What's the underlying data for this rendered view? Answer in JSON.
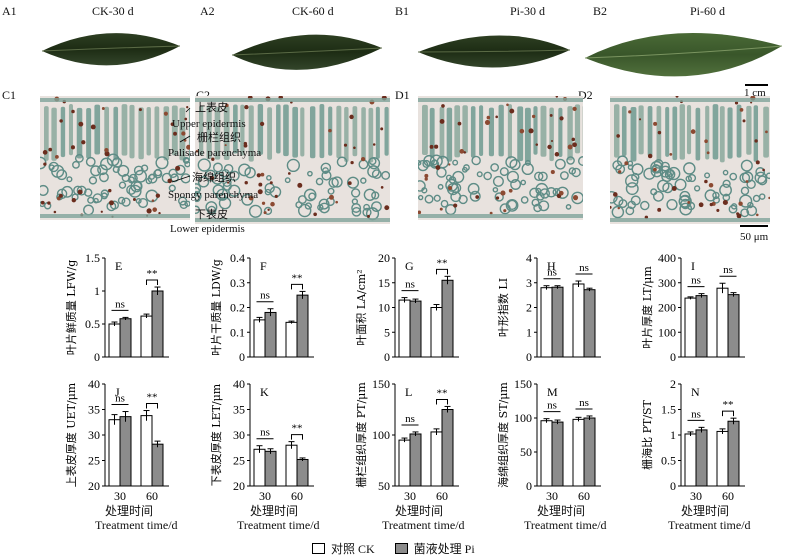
{
  "leaf_panels": [
    {
      "letter": "A1",
      "label": "CK-30 d"
    },
    {
      "letter": "A2",
      "label": "CK-60 d"
    },
    {
      "letter": "B1",
      "label": "Pi-30 d"
    },
    {
      "letter": "B2",
      "label": "Pi-60 d"
    }
  ],
  "leaf_scale": "1 cm",
  "micro_panels": [
    "C1",
    "C2",
    "D1",
    "D2"
  ],
  "micro_scale": "50 μm",
  "annotations": {
    "upper_cn": "上表皮",
    "upper_en": "Upper epidermis",
    "palisade_cn": "栅栏组织",
    "palisade_en": "Palisade parenchyma",
    "spongy_cn": "海绵组织",
    "spongy_en": "Spongy parenchyma",
    "lower_cn": "下表皮",
    "lower_en": "Lower epidermis"
  },
  "xlabel_cn": "处理时间",
  "xlabel_en": "Treatment time/d",
  "legend": {
    "ck": "对照 CK",
    "pi": "菌液处理 Pi"
  },
  "colors": {
    "ck": "#ffffff",
    "pi": "#8c8c8c"
  },
  "chart_data": [
    {
      "type": "bar",
      "panel": "E",
      "ylabel": "叶片鲜质量 LFW/g",
      "categories": [
        "30",
        "60"
      ],
      "ylim": [
        0,
        1.5
      ],
      "yticks": [
        0,
        0.5,
        1.0,
        1.5
      ],
      "series": [
        {
          "name": "对照 CK",
          "values": [
            0.5,
            0.62
          ],
          "errors": [
            0.03,
            0.03
          ]
        },
        {
          "name": "菌液处理 Pi",
          "values": [
            0.58,
            1.0
          ],
          "errors": [
            0.02,
            0.06
          ]
        }
      ],
      "significance": [
        "ns",
        "**"
      ]
    },
    {
      "type": "bar",
      "panel": "F",
      "ylabel": "叶片干质量 LDW/g",
      "categories": [
        "30",
        "60"
      ],
      "ylim": [
        0,
        0.4
      ],
      "yticks": [
        0,
        0.1,
        0.2,
        0.3,
        0.4
      ],
      "series": [
        {
          "name": "对照 CK",
          "values": [
            0.15,
            0.14
          ],
          "errors": [
            0.01,
            0.005
          ]
        },
        {
          "name": "菌液处理 Pi",
          "values": [
            0.18,
            0.25
          ],
          "errors": [
            0.015,
            0.015
          ]
        }
      ],
      "significance": [
        "ns",
        "**"
      ]
    },
    {
      "type": "bar",
      "panel": "G",
      "ylabel": "叶面积 LA/cm²",
      "categories": [
        "30",
        "60"
      ],
      "ylim": [
        0,
        20
      ],
      "yticks": [
        0,
        5,
        10,
        15,
        20
      ],
      "series": [
        {
          "name": "对照 CK",
          "values": [
            11.5,
            10
          ],
          "errors": [
            0.5,
            0.6
          ]
        },
        {
          "name": "菌液处理 Pi",
          "values": [
            11.3,
            15.5
          ],
          "errors": [
            0.4,
            0.8
          ]
        }
      ],
      "significance": [
        "ns",
        "**"
      ]
    },
    {
      "type": "bar",
      "panel": "H",
      "ylabel": "叶形指数 LI",
      "categories": [
        "30",
        "60"
      ],
      "ylim": [
        0,
        4
      ],
      "yticks": [
        0,
        1,
        2,
        3,
        4
      ],
      "series": [
        {
          "name": "对照 CK",
          "values": [
            2.8,
            2.95
          ],
          "errors": [
            0.08,
            0.12
          ]
        },
        {
          "name": "菌液处理 Pi",
          "values": [
            2.82,
            2.72
          ],
          "errors": [
            0.06,
            0.06
          ]
        }
      ],
      "significance": [
        "ns",
        "ns"
      ]
    },
    {
      "type": "bar",
      "panel": "I",
      "ylabel": "叶片厚度 LT/μm",
      "categories": [
        "30",
        "60"
      ],
      "ylim": [
        0,
        400
      ],
      "yticks": [
        0,
        100,
        200,
        300,
        400
      ],
      "series": [
        {
          "name": "对照 CK",
          "values": [
            238,
            278
          ],
          "errors": [
            5,
            20
          ]
        },
        {
          "name": "菌液处理 Pi",
          "values": [
            248,
            252
          ],
          "errors": [
            8,
            8
          ]
        }
      ],
      "significance": [
        "ns",
        "ns"
      ]
    },
    {
      "type": "bar",
      "panel": "J",
      "ylabel": "上表皮厚度 UET/μm",
      "categories": [
        "30",
        "60"
      ],
      "ylim": [
        20,
        40
      ],
      "yticks": [
        20,
        25,
        30,
        35,
        40
      ],
      "series": [
        {
          "name": "对照 CK",
          "values": [
            33,
            33.8
          ],
          "errors": [
            1,
            1
          ]
        },
        {
          "name": "菌液处理 Pi",
          "values": [
            33.6,
            28.2
          ],
          "errors": [
            1,
            0.6
          ]
        }
      ],
      "significance": [
        "ns",
        "**"
      ]
    },
    {
      "type": "bar",
      "panel": "K",
      "ylabel": "下表皮厚度 LET/μm",
      "categories": [
        "30",
        "60"
      ],
      "ylim": [
        20,
        40
      ],
      "yticks": [
        20,
        25,
        30,
        35,
        40
      ],
      "series": [
        {
          "name": "对照 CK",
          "values": [
            27.2,
            28
          ],
          "errors": [
            0.7,
            0.7
          ]
        },
        {
          "name": "菌液处理 Pi",
          "values": [
            26.8,
            25.2
          ],
          "errors": [
            0.5,
            0.3
          ]
        }
      ],
      "significance": [
        "ns",
        "**"
      ]
    },
    {
      "type": "bar",
      "panel": "L",
      "ylabel": "栅栏组织厚度 PT/μm",
      "categories": [
        "30",
        "60"
      ],
      "ylim": [
        50,
        150
      ],
      "yticks": [
        50,
        100,
        150
      ],
      "series": [
        {
          "name": "对照 CK",
          "values": [
            95,
            103
          ],
          "errors": [
            2,
            3
          ]
        },
        {
          "name": "菌液处理 Pi",
          "values": [
            101,
            125
          ],
          "errors": [
            2,
            3
          ]
        }
      ],
      "significance": [
        "ns",
        "**"
      ]
    },
    {
      "type": "bar",
      "panel": "M",
      "ylabel": "海绵组织厚度 ST/μm",
      "categories": [
        "30",
        "60"
      ],
      "ylim": [
        0,
        150
      ],
      "yticks": [
        0,
        50,
        100,
        150
      ],
      "series": [
        {
          "name": "对照 CK",
          "values": [
            96,
            98
          ],
          "errors": [
            3,
            3
          ]
        },
        {
          "name": "菌液处理 Pi",
          "values": [
            94,
            100
          ],
          "errors": [
            3,
            3
          ]
        }
      ],
      "significance": [
        "ns",
        "ns"
      ]
    },
    {
      "type": "bar",
      "panel": "N",
      "ylabel": "栅海比 PT/ST",
      "categories": [
        "30",
        "60"
      ],
      "ylim": [
        0,
        2.0
      ],
      "yticks": [
        0,
        0.5,
        1.0,
        1.5,
        2.0
      ],
      "series": [
        {
          "name": "对照 CK",
          "values": [
            1.02,
            1.07
          ],
          "errors": [
            0.04,
            0.05
          ]
        },
        {
          "name": "菌液处理 Pi",
          "values": [
            1.1,
            1.27
          ],
          "errors": [
            0.05,
            0.06
          ]
        }
      ],
      "significance": [
        "ns",
        "**"
      ]
    }
  ]
}
